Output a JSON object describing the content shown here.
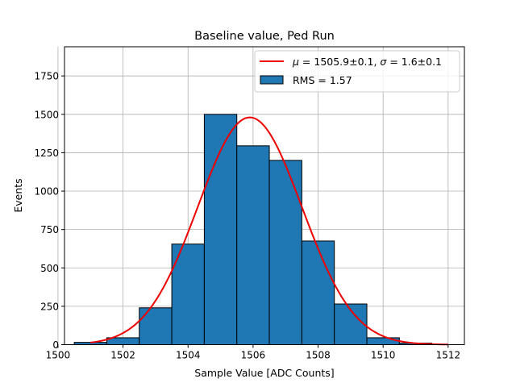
{
  "chart_data": {
    "type": "bar",
    "title": "Baseline value, Ped Run",
    "xlabel": "Sample Value [ADC Counts]",
    "ylabel": "Events",
    "xlim": [
      1500.2,
      1512.5
    ],
    "ylim": [
      0,
      1940
    ],
    "grid": true,
    "legend_position": "top-right",
    "x_ticks": [
      1500,
      1502,
      1504,
      1506,
      1508,
      1510,
      1512
    ],
    "y_ticks": [
      0,
      250,
      500,
      750,
      1000,
      1250,
      1500,
      1750
    ],
    "x_tick_labels": [
      "1500",
      "1502",
      "1504",
      "1506",
      "1508",
      "1510",
      "1512"
    ],
    "y_tick_labels": [
      "0",
      "250",
      "500",
      "750",
      "1000",
      "1250",
      "1500",
      "1750"
    ],
    "bins": [
      {
        "x0": 1500.5,
        "x1": 1501.5,
        "count": 15
      },
      {
        "x0": 1501.5,
        "x1": 1502.5,
        "count": 45
      },
      {
        "x0": 1502.5,
        "x1": 1503.5,
        "count": 240
      },
      {
        "x0": 1503.5,
        "x1": 1504.5,
        "count": 655
      },
      {
        "x0": 1504.5,
        "x1": 1505.5,
        "count": 1500
      },
      {
        "x0": 1505.5,
        "x1": 1506.5,
        "count": 1295
      },
      {
        "x0": 1506.5,
        "x1": 1507.5,
        "count": 1200
      },
      {
        "x0": 1507.5,
        "x1": 1508.5,
        "count": 675
      },
      {
        "x0": 1508.5,
        "x1": 1509.5,
        "count": 265
      },
      {
        "x0": 1509.5,
        "x1": 1510.5,
        "count": 45
      },
      {
        "x0": 1510.5,
        "x1": 1511.5,
        "count": 10
      }
    ],
    "fit": {
      "mu": 1505.9,
      "sigma": 1.6,
      "peak": 1480,
      "x_start": 1501,
      "x_end": 1512
    },
    "series": [
      {
        "name": "RMS = 1.57",
        "kind": "histogram",
        "color": "#1f77b4"
      },
      {
        "name_prefix_mu": "μ",
        "name_mid": " = 1505.9±0.1, ",
        "name_prefix_sigma": "σ",
        "name_suffix": " = 1.6±0.1",
        "kind": "fit-line",
        "color": "#ee0000"
      }
    ]
  }
}
